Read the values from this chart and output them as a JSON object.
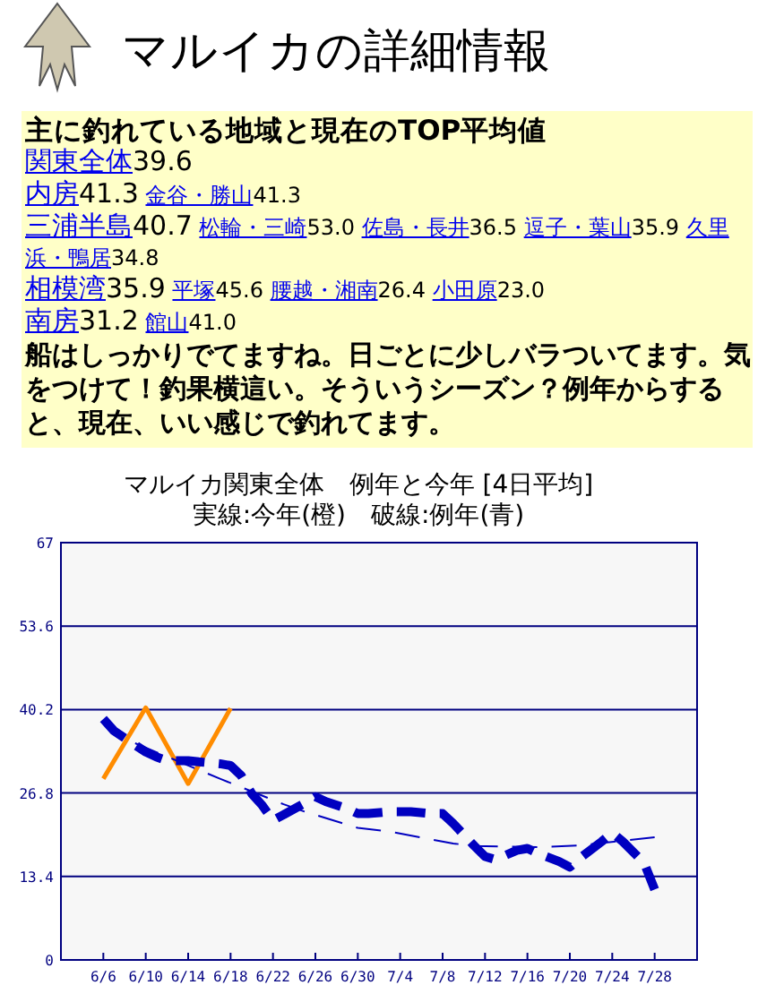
{
  "chart_data": {
    "type": "line",
    "title": "マルイカ関東全体　例年と今年 [4日平均]",
    "subtitle": "実線:今年(橙)　破線:例年(青)",
    "annotations": [
      "マルイカの詳細情報",
      "主に釣れている地域と現在のTOP平均値",
      "関東全体39.6",
      "内房41.3 金谷・勝山41.3",
      "三浦半島40.7 松輪・三崎53.0 佐島・長井36.5 逗子・葉山35.9 久里浜・鴨居34.8",
      "相模湾35.9 平塚45.6 腰越・湘南26.4 小田原23.0",
      "南房31.2 館山41.0",
      "船はしっかりでてますね。日ごとに少しバラついてます。気をつけて！釣果横這い。そういうシーズン？例年からすると、現在、いい感じで釣れてます。"
    ],
    "xlim": [
      "--06-02",
      "--08-01"
    ],
    "xticks": [
      {
        "value": "--06-06",
        "label": "6/6"
      },
      {
        "value": "--06-10",
        "label": "6/10"
      },
      {
        "value": "--06-14",
        "label": "6/14"
      },
      {
        "value": "--06-18",
        "label": "6/18"
      },
      {
        "value": "--06-22",
        "label": "6/22"
      },
      {
        "value": "--06-26",
        "label": "6/26"
      },
      {
        "value": "--06-30",
        "label": "6/30"
      },
      {
        "value": "--07-04",
        "label": "7/4"
      },
      {
        "value": "--07-08",
        "label": "7/8"
      },
      {
        "value": "--07-12",
        "label": "7/12"
      },
      {
        "value": "--07-16",
        "label": "7/16"
      },
      {
        "value": "--07-20",
        "label": "7/20"
      },
      {
        "value": "--07-24",
        "label": "7/24"
      },
      {
        "value": "--07-28",
        "label": "7/28"
      }
    ],
    "ylim": [
      0,
      67
    ],
    "yticks": [
      0,
      13.4,
      26.8,
      40.2,
      53.6,
      67
    ],
    "grid": "y",
    "marker": "none",
    "series": [
      {
        "color": "#ff8c00",
        "line_style": "solid",
        "x": [
          "--06-06",
          "--06-10",
          "--06-14",
          "--06-18"
        ],
        "values": [
          29.1,
          40.5,
          28.3,
          40.4
        ]
      },
      {
        "color": "#0000c0",
        "line_style": "dashed",
        "x": [
          "--06-06",
          "--06-07",
          "--06-09",
          "--06-10",
          "--06-11",
          "--06-12",
          "--06-13",
          "--06-14",
          "--06-15",
          "--06-17",
          "--06-18",
          "--06-19",
          "--06-20",
          "--06-21",
          "--06-22",
          "--06-23",
          "--06-25",
          "--06-26",
          "--06-27",
          "--06-29",
          "--06-30",
          "--07-01",
          "--07-03",
          "--07-04",
          "--07-05",
          "--07-07",
          "--07-08",
          "--07-09",
          "--07-11",
          "--07-12",
          "--07-13",
          "--07-15",
          "--07-16",
          "--07-17",
          "--07-19",
          "--07-20",
          "--07-21",
          "--07-23",
          "--07-24",
          "--07-25",
          "--07-27",
          "--07-28"
        ],
        "values": [
          38.7,
          36.8,
          34.5,
          33.4,
          32.6,
          32.0,
          32.0,
          32.0,
          31.8,
          31.5,
          31.2,
          29.6,
          26.7,
          24.8,
          22.4,
          23.3,
          25.2,
          26.2,
          25.4,
          24.3,
          23.5,
          23.5,
          23.8,
          23.8,
          23.8,
          23.5,
          23.5,
          21.9,
          18.3,
          16.6,
          16.1,
          17.6,
          17.9,
          17.1,
          15.8,
          14.9,
          16.4,
          19.0,
          20.4,
          19.0,
          15.6,
          11.3
        ]
      },
      {
        "color": "#0000c0",
        "line_style": "dashed",
        "x": [
          "--06-09",
          "--06-15",
          "--06-17",
          "--06-23",
          "--06-25",
          "--06-30",
          "--07-03",
          "--07-09",
          "--07-11",
          "--07-17",
          "--07-21",
          "--07-28"
        ],
        "values": [
          34.8,
          30.5,
          29.1,
          25.0,
          23.8,
          21.2,
          20.6,
          18.7,
          18.3,
          18.1,
          18.4,
          19.7
        ]
      }
    ]
  }
}
